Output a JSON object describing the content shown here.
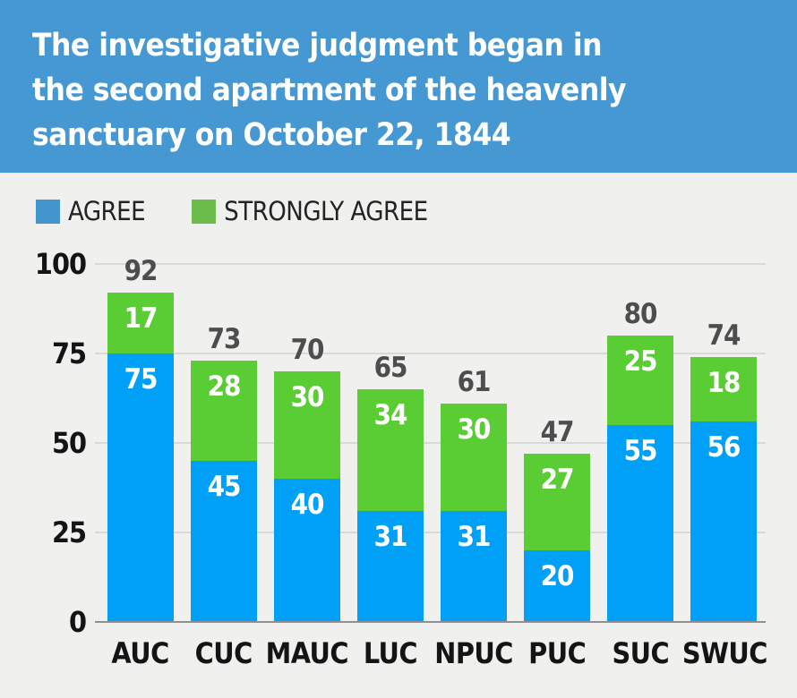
{
  "header": {
    "title": "The investigative judgment began in the second apartment of the heavenly sanctuary on October 22, 1844",
    "title_lines": [
      "The investigative judgment began in",
      "the second apartment of the heavenly",
      "sanctuary on October 22, 1844"
    ]
  },
  "legend": {
    "items": [
      {
        "label": "AGREE",
        "swatch_color": "#4494ce"
      },
      {
        "label": "STRONGLY AGREE",
        "swatch_color": "#6cbd4b"
      }
    ]
  },
  "colors": {
    "header_bg": "#4698d3",
    "page_bg": "#f0f0ef",
    "bar_agree": "#00a0f6",
    "bar_strongly_agree": "#5acc34",
    "gridline": "#d9d9d6",
    "axis_line": "#8f8f8f",
    "segment_label": "#ffffff",
    "total_label": "#4d4d4d",
    "tick_label": "#141414"
  },
  "chart_data": {
    "type": "bar",
    "stacked": true,
    "title": "The investigative judgment began in the second apartment of the heavenly sanctuary on October 22, 1844",
    "categories": [
      "AUC",
      "CUC",
      "MAUC",
      "LUC",
      "NPUC",
      "PUC",
      "SUC",
      "SWUC"
    ],
    "series": [
      {
        "name": "AGREE",
        "color": "#00a0f6",
        "values": [
          75,
          45,
          40,
          31,
          31,
          20,
          55,
          56
        ]
      },
      {
        "name": "STRONGLY AGREE",
        "color": "#5acc34",
        "values": [
          17,
          28,
          30,
          34,
          30,
          27,
          25,
          18
        ]
      }
    ],
    "totals": [
      92,
      73,
      70,
      65,
      61,
      47,
      80,
      74
    ],
    "xlabel": "",
    "ylabel": "",
    "ylim": [
      0,
      100
    ],
    "yticks": [
      0,
      25,
      50,
      75,
      100
    ],
    "grid": true,
    "legend_position": "top"
  }
}
